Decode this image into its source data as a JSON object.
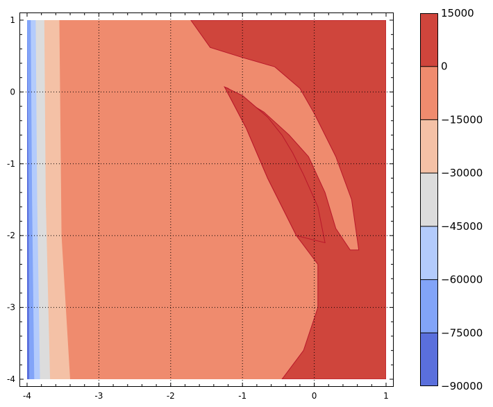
{
  "chart_data": {
    "type": "contour",
    "title": "",
    "xlabel": "",
    "ylabel": "",
    "xlim": [
      -4,
      1
    ],
    "ylim": [
      -4,
      1
    ],
    "x_ticks": [
      -4,
      -3,
      -2,
      -1,
      0,
      1
    ],
    "y_ticks": [
      -4,
      -3,
      -2,
      -1,
      0,
      1
    ],
    "x_tick_labels": [
      "-4",
      "-3",
      "-2",
      "-1",
      "0",
      "1"
    ],
    "y_tick_labels": [
      "-4",
      "-3",
      "-2",
      "-1",
      "0",
      "1"
    ],
    "grid": "dotted",
    "colorbar": {
      "levels": [
        -90000,
        -75000,
        -60000,
        -45000,
        -30000,
        -15000,
        0,
        15000
      ],
      "labels": [
        "−90000",
        "−75000",
        "−60000",
        "−45000",
        "−30000",
        "−15000",
        "0",
        "15000"
      ],
      "colors": [
        "#5a6fdc",
        "#82a4f8",
        "#b3cbfc",
        "#dcdcdc",
        "#f4c1a6",
        "#ef8b6e",
        "#cf453c"
      ]
    },
    "regions": {
      "left_bands": [
        {
          "level": "-90000 to -75000",
          "color": "#5a6fdc",
          "boundary": [
            [
              -4.0,
              1
            ],
            [
              -3.98,
              -1.5
            ],
            [
              -3.97,
              -4
            ]
          ]
        },
        {
          "level": "-75000 to -60000",
          "color": "#82a4f8",
          "boundary": [
            [
              -3.95,
              1
            ],
            [
              -3.93,
              -1.5
            ],
            [
              -3.9,
              -4
            ]
          ]
        },
        {
          "level": "-60000 to -45000",
          "color": "#b3cbfc",
          "boundary": [
            [
              -3.88,
              1
            ],
            [
              -3.86,
              -1.5
            ],
            [
              -3.82,
              -4
            ]
          ]
        },
        {
          "level": "-45000 to -30000",
          "color": "#dcdcdc",
          "boundary": [
            [
              -3.76,
              1
            ],
            [
              -3.74,
              -1.5
            ],
            [
              -3.68,
              -4
            ]
          ]
        },
        {
          "level": "-30000 to -15000",
          "color": "#f4c1a6",
          "boundary": [
            [
              -3.55,
              1
            ],
            [
              -3.52,
              -2
            ],
            [
              -3.4,
              -4
            ]
          ]
        }
      ],
      "positive_regions": [
        {
          "level": "0 to 15000",
          "color": "#cf453c",
          "boundary": [
            [
              -1.72,
              1
            ],
            [
              -1.45,
              0.62
            ],
            [
              -1.0,
              0.48
            ],
            [
              -0.55,
              0.35
            ],
            [
              -0.2,
              0.05
            ],
            [
              0.0,
              -0.3
            ],
            [
              0.3,
              -0.9
            ],
            [
              0.52,
              -1.5
            ],
            [
              0.62,
              -2.2
            ],
            [
              0.5,
              -2.2
            ],
            [
              0.3,
              -1.9
            ],
            [
              0.15,
              -1.4
            ],
            [
              -0.08,
              -0.9
            ],
            [
              -0.35,
              -0.6
            ],
            [
              -0.7,
              -0.28
            ],
            [
              -1.0,
              -0.1
            ],
            [
              -1.2,
              0.05
            ],
            [
              -1.25,
              0.07
            ],
            [
              -0.95,
              -0.5
            ],
            [
              -0.65,
              -1.2
            ],
            [
              -0.25,
              -2.0
            ],
            [
              0.05,
              -2.4
            ],
            [
              0.05,
              -3.0
            ],
            [
              -0.15,
              -3.6
            ],
            [
              -0.45,
              -4
            ],
            [
              1,
              -4
            ],
            [
              1,
              1
            ]
          ]
        },
        {
          "level": "0 to 15000",
          "color": "#cf453c",
          "boundary": [
            [
              -1.25,
              0.07
            ],
            [
              -1.0,
              -0.05
            ],
            [
              -0.65,
              -0.35
            ],
            [
              -0.45,
              -0.6
            ],
            [
              -0.3,
              -0.85
            ],
            [
              -0.15,
              -1.15
            ],
            [
              0.05,
              -1.6
            ],
            [
              0.15,
              -2.1
            ],
            [
              -0.25,
              -2.0
            ],
            [
              -0.65,
              -1.2
            ],
            [
              -0.95,
              -0.5
            ]
          ]
        }
      ]
    }
  }
}
